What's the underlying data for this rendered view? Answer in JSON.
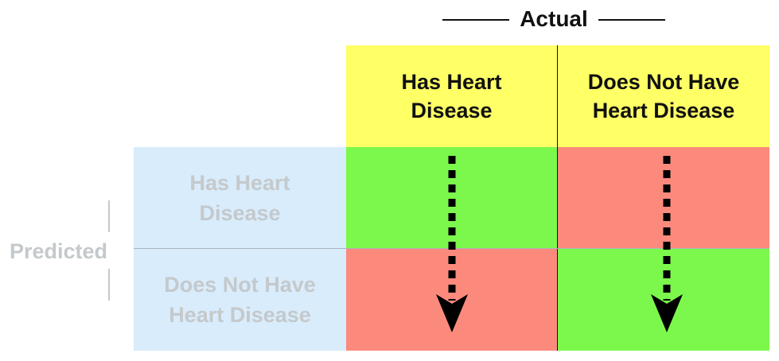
{
  "actual": {
    "label": "Actual"
  },
  "predicted": {
    "label": "Predicted"
  },
  "columns": [
    {
      "line1": "Has Heart",
      "line2": "Disease"
    },
    {
      "line1": "Does Not Have",
      "line2": "Heart Disease"
    }
  ],
  "rows": [
    {
      "line1": "Has Heart",
      "line2": "Disease"
    },
    {
      "line1": "Does Not Have",
      "line2": "Heart Disease"
    }
  ],
  "colors": {
    "header_yellow": "#ffff66",
    "row_header_blue": "#d9ecfb",
    "correct_green": "#7cf84c",
    "incorrect_red": "#fb8a7d",
    "muted_text": "#c4c9cc",
    "dark_text": "#111111"
  },
  "icons": {
    "arrow": "dashed-down-arrow-icon"
  }
}
